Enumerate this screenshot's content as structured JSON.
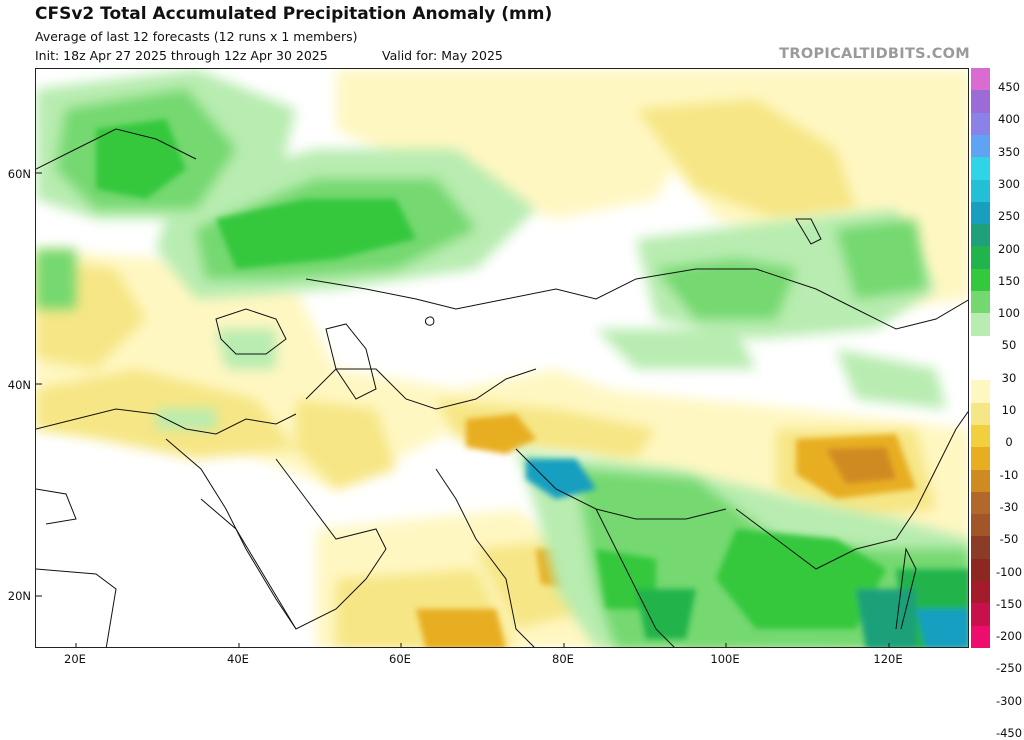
{
  "header": {
    "title": "CFSv2 Total Accumulated Precipitation Anomaly (mm)",
    "subtitle": "Average of last 12 forecasts (12 runs x 1 members)",
    "init": "Init: 18z Apr 27 2025 through 12z Apr 30 2025",
    "valid": "Valid for: May 2025",
    "brand": "TROPICALTIDBITS.COM"
  },
  "map": {
    "lat_labels": [
      "60N",
      "40N",
      "20N"
    ],
    "lon_labels": [
      "20E",
      "40E",
      "60E",
      "80E",
      "100E",
      "120E"
    ],
    "lon_range": [
      15,
      130
    ],
    "lat_range": [
      15,
      70
    ]
  },
  "colorbar": {
    "labels": [
      "450",
      "400",
      "350",
      "300",
      "250",
      "200",
      "150",
      "100",
      "50",
      "30",
      "10",
      "0",
      "-10",
      "-30",
      "-50",
      "-100",
      "-150",
      "-200",
      "-250",
      "-300",
      "-450"
    ],
    "colors": [
      "#d96cd0",
      "#9c6bd6",
      "#8a82e6",
      "#5fa3f2",
      "#2fd4e6",
      "#22bfd6",
      "#189fc0",
      "#1fa07a",
      "#22b44c",
      "#34c83c",
      "#74d870",
      "#b8ecb0",
      "#ffffff",
      "#ffffff",
      "#fff7c2",
      "#f6e685",
      "#f2cf3c",
      "#e8ae22",
      "#d08a22",
      "#b0692a",
      "#a05628",
      "#8a3c26",
      "#8c2820",
      "#a41c2c",
      "#c8104a",
      "#ee0c6c"
    ]
  }
}
